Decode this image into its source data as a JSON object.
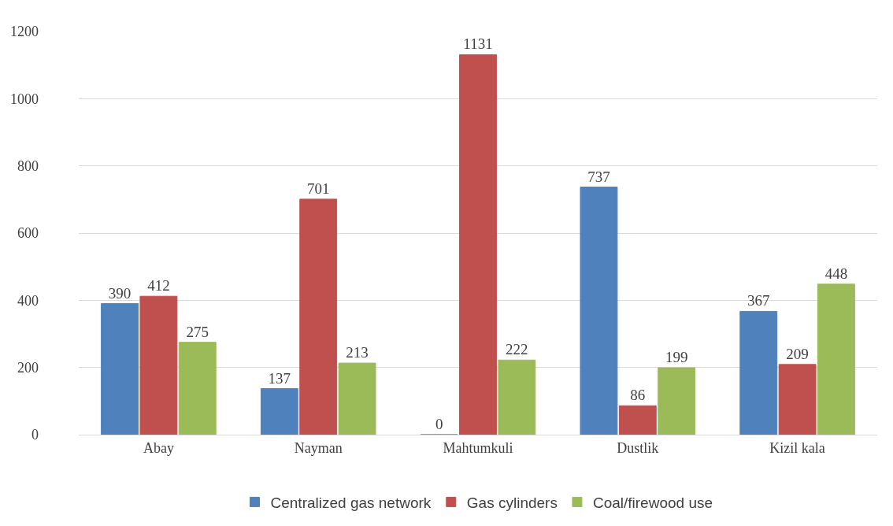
{
  "chart_data": {
    "type": "bar",
    "categories": [
      "Abay",
      "Nayman",
      "Mahtumkuli",
      "Dustlik",
      "Kizil kala"
    ],
    "series": [
      {
        "name": "Centralized gas network",
        "color": "#4f81bd",
        "values": [
          390,
          137,
          0,
          737,
          367
        ]
      },
      {
        "name": "Gas cylinders",
        "color": "#c0504d",
        "values": [
          412,
          701,
          1131,
          86,
          209
        ]
      },
      {
        "name": "Coal/firewood use",
        "color": "#9bbb59",
        "values": [
          275,
          213,
          222,
          199,
          448
        ]
      }
    ],
    "ylim": [
      0,
      1200
    ],
    "yticks": [
      0,
      200,
      400,
      600,
      800,
      1000,
      1200
    ],
    "grid": "y",
    "legend": "bottom",
    "data_labels": true
  }
}
